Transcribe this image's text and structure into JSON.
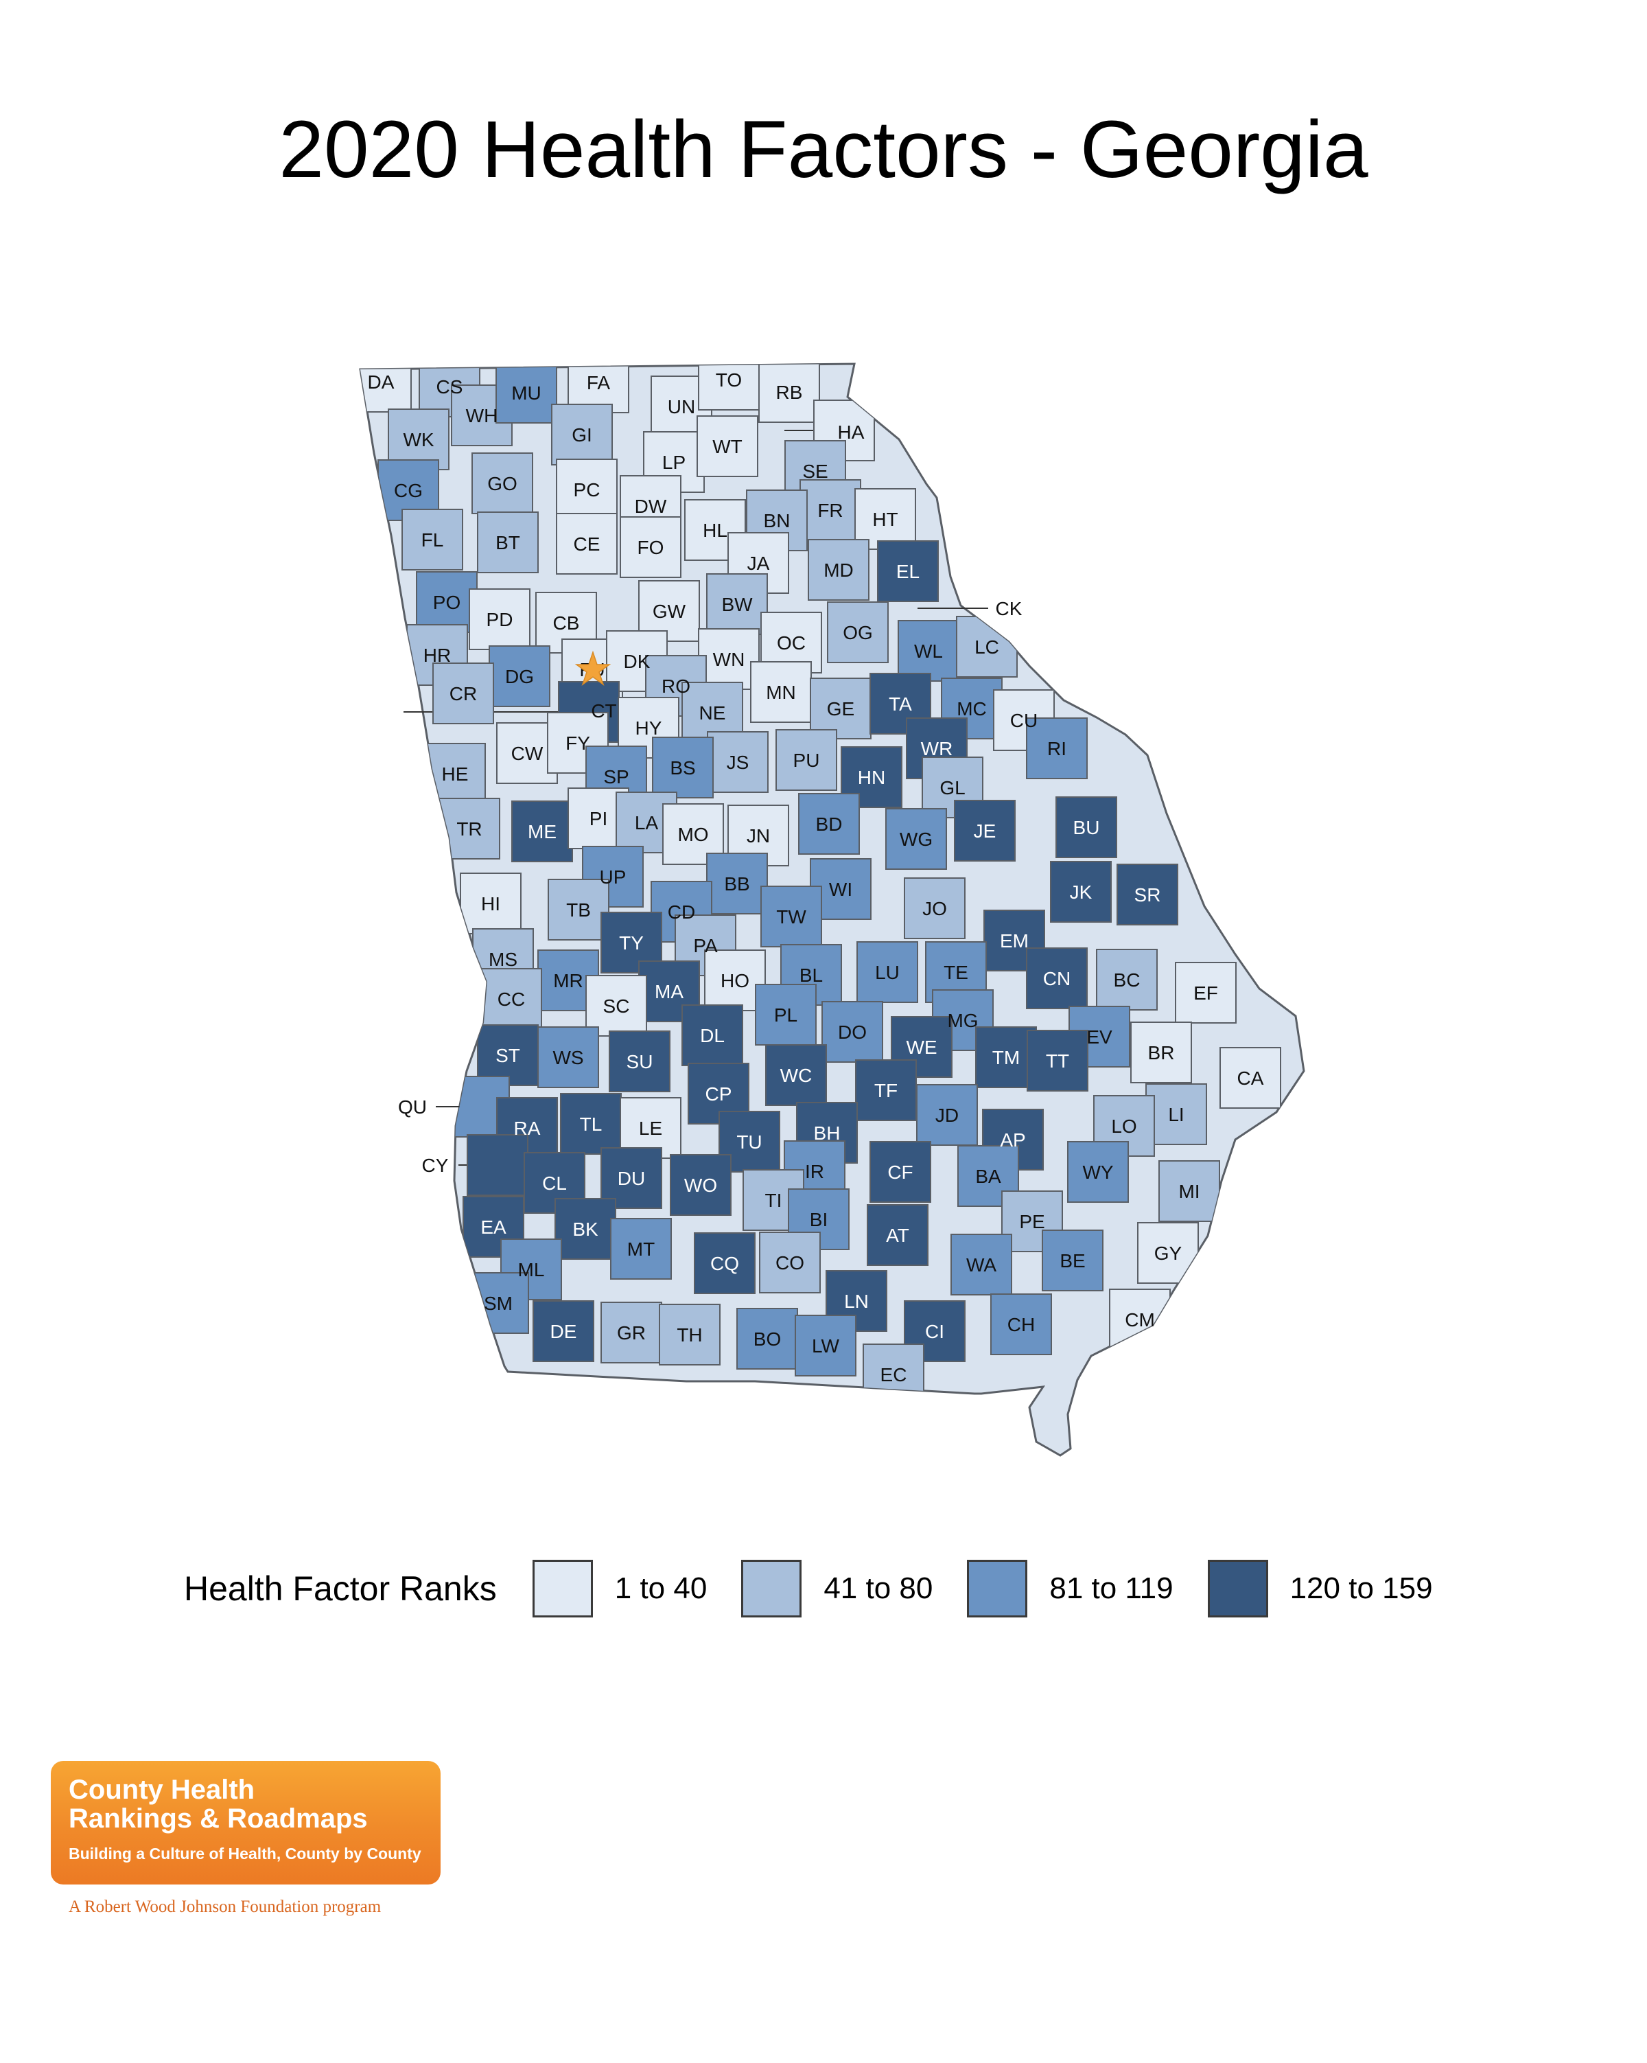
{
  "title": "2020 Health Factors - Georgia",
  "legend": {
    "title": "Health Factor Ranks",
    "bins": [
      {
        "label": "1 to 40",
        "color": "#e1eaf4"
      },
      {
        "label": "41 to 80",
        "color": "#a8bfdb"
      },
      {
        "label": "81 to 119",
        "color": "#6a93c3"
      },
      {
        "label": "120 to 159",
        "color": "#36577f"
      }
    ]
  },
  "counties": [
    {
      "abbr": "DA",
      "bin": 0
    },
    {
      "abbr": "CS",
      "bin": 1
    },
    {
      "abbr": "WH",
      "bin": 1
    },
    {
      "abbr": "MU",
      "bin": 2
    },
    {
      "abbr": "FA",
      "bin": 0
    },
    {
      "abbr": "UN",
      "bin": 0
    },
    {
      "abbr": "TO",
      "bin": 0
    },
    {
      "abbr": "RB",
      "bin": 0
    },
    {
      "abbr": "HA",
      "bin": 0
    },
    {
      "abbr": "WK",
      "bin": 1
    },
    {
      "abbr": "GI",
      "bin": 1
    },
    {
      "abbr": "LP",
      "bin": 0
    },
    {
      "abbr": "WT",
      "bin": 0
    },
    {
      "abbr": "CG",
      "bin": 2
    },
    {
      "abbr": "GO",
      "bin": 1
    },
    {
      "abbr": "PC",
      "bin": 0
    },
    {
      "abbr": "DW",
      "bin": 0
    },
    {
      "abbr": "SE",
      "bin": 1
    },
    {
      "abbr": "FR",
      "bin": 1
    },
    {
      "abbr": "BN",
      "bin": 1
    },
    {
      "abbr": "HT",
      "bin": 0
    },
    {
      "abbr": "FL",
      "bin": 1
    },
    {
      "abbr": "BT",
      "bin": 1
    },
    {
      "abbr": "CE",
      "bin": 0
    },
    {
      "abbr": "FO",
      "bin": 0
    },
    {
      "abbr": "HL",
      "bin": 0
    },
    {
      "abbr": "JA",
      "bin": 0
    },
    {
      "abbr": "MD",
      "bin": 1
    },
    {
      "abbr": "EL",
      "bin": 3
    },
    {
      "abbr": "CK",
      "bin": 0
    },
    {
      "abbr": "PO",
      "bin": 2
    },
    {
      "abbr": "PD",
      "bin": 0
    },
    {
      "abbr": "CB",
      "bin": 0
    },
    {
      "abbr": "GW",
      "bin": 0
    },
    {
      "abbr": "BW",
      "bin": 1
    },
    {
      "abbr": "OG",
      "bin": 1
    },
    {
      "abbr": "WL",
      "bin": 2
    },
    {
      "abbr": "LC",
      "bin": 1
    },
    {
      "abbr": "HR",
      "bin": 1
    },
    {
      "abbr": "DG",
      "bin": 2
    },
    {
      "abbr": "FU",
      "bin": 0
    },
    {
      "abbr": "DK",
      "bin": 0
    },
    {
      "abbr": "WN",
      "bin": 0
    },
    {
      "abbr": "OC",
      "bin": 0
    },
    {
      "abbr": "RO",
      "bin": 1
    },
    {
      "abbr": "MN",
      "bin": 0
    },
    {
      "abbr": "CR",
      "bin": 1
    },
    {
      "abbr": "CT",
      "bin": 3
    },
    {
      "abbr": "HY",
      "bin": 0
    },
    {
      "abbr": "NE",
      "bin": 1
    },
    {
      "abbr": "GE",
      "bin": 1
    },
    {
      "abbr": "TA",
      "bin": 3
    },
    {
      "abbr": "MC",
      "bin": 2
    },
    {
      "abbr": "CU",
      "bin": 0
    },
    {
      "abbr": "CW",
      "bin": 0
    },
    {
      "abbr": "FY",
      "bin": 0
    },
    {
      "abbr": "JS",
      "bin": 1
    },
    {
      "abbr": "PU",
      "bin": 1
    },
    {
      "abbr": "WR",
      "bin": 3
    },
    {
      "abbr": "RI",
      "bin": 2
    },
    {
      "abbr": "HE",
      "bin": 1
    },
    {
      "abbr": "SP",
      "bin": 2
    },
    {
      "abbr": "BS",
      "bin": 2
    },
    {
      "abbr": "HN",
      "bin": 3
    },
    {
      "abbr": "GL",
      "bin": 1
    },
    {
      "abbr": "TR",
      "bin": 1
    },
    {
      "abbr": "ME",
      "bin": 3
    },
    {
      "abbr": "PI",
      "bin": 0
    },
    {
      "abbr": "LA",
      "bin": 1
    },
    {
      "abbr": "MO",
      "bin": 0
    },
    {
      "abbr": "JN",
      "bin": 0
    },
    {
      "abbr": "BD",
      "bin": 2
    },
    {
      "abbr": "WG",
      "bin": 2
    },
    {
      "abbr": "JE",
      "bin": 3
    },
    {
      "abbr": "BU",
      "bin": 3
    },
    {
      "abbr": "UP",
      "bin": 2
    },
    {
      "abbr": "BB",
      "bin": 2
    },
    {
      "abbr": "WI",
      "bin": 2
    },
    {
      "abbr": "JK",
      "bin": 3
    },
    {
      "abbr": "SR",
      "bin": 3
    },
    {
      "abbr": "HI",
      "bin": 0
    },
    {
      "abbr": "TB",
      "bin": 1
    },
    {
      "abbr": "CD",
      "bin": 2
    },
    {
      "abbr": "TW",
      "bin": 2
    },
    {
      "abbr": "JO",
      "bin": 1
    },
    {
      "abbr": "TY",
      "bin": 3
    },
    {
      "abbr": "PA",
      "bin": 1
    },
    {
      "abbr": "EM",
      "bin": 3
    },
    {
      "abbr": "MS",
      "bin": 1
    },
    {
      "abbr": "LU",
      "bin": 2
    },
    {
      "abbr": "TE",
      "bin": 2
    },
    {
      "abbr": "CN",
      "bin": 3
    },
    {
      "abbr": "BC",
      "bin": 1
    },
    {
      "abbr": "EF",
      "bin": 0
    },
    {
      "abbr": "MR",
      "bin": 2
    },
    {
      "abbr": "MA",
      "bin": 3
    },
    {
      "abbr": "HO",
      "bin": 0
    },
    {
      "abbr": "BL",
      "bin": 2
    },
    {
      "abbr": "CC",
      "bin": 1
    },
    {
      "abbr": "SC",
      "bin": 0
    },
    {
      "abbr": "PL",
      "bin": 2
    },
    {
      "abbr": "DO",
      "bin": 2
    },
    {
      "abbr": "MG",
      "bin": 2
    },
    {
      "abbr": "DL",
      "bin": 3
    },
    {
      "abbr": "WE",
      "bin": 3
    },
    {
      "abbr": "EV",
      "bin": 2
    },
    {
      "abbr": "ST",
      "bin": 3
    },
    {
      "abbr": "WS",
      "bin": 2
    },
    {
      "abbr": "SU",
      "bin": 3
    },
    {
      "abbr": "WC",
      "bin": 3
    },
    {
      "abbr": "TM",
      "bin": 3
    },
    {
      "abbr": "TT",
      "bin": 3
    },
    {
      "abbr": "BR",
      "bin": 0
    },
    {
      "abbr": "CA",
      "bin": 0
    },
    {
      "abbr": "CP",
      "bin": 3
    },
    {
      "abbr": "TF",
      "bin": 3
    },
    {
      "abbr": "QU",
      "bin": 2
    },
    {
      "abbr": "JD",
      "bin": 2
    },
    {
      "abbr": "LI",
      "bin": 1
    },
    {
      "abbr": "RA",
      "bin": 3
    },
    {
      "abbr": "TL",
      "bin": 3
    },
    {
      "abbr": "LE",
      "bin": 0
    },
    {
      "abbr": "BH",
      "bin": 3
    },
    {
      "abbr": "LO",
      "bin": 1
    },
    {
      "abbr": "AP",
      "bin": 3
    },
    {
      "abbr": "TU",
      "bin": 3
    },
    {
      "abbr": "CY",
      "bin": 3
    },
    {
      "abbr": "CF",
      "bin": 3
    },
    {
      "abbr": "IR",
      "bin": 2
    },
    {
      "abbr": "BA",
      "bin": 2
    },
    {
      "abbr": "WY",
      "bin": 2
    },
    {
      "abbr": "CL",
      "bin": 3
    },
    {
      "abbr": "DU",
      "bin": 3
    },
    {
      "abbr": "WO",
      "bin": 3
    },
    {
      "abbr": "TI",
      "bin": 1
    },
    {
      "abbr": "MI",
      "bin": 1
    },
    {
      "abbr": "PE",
      "bin": 1
    },
    {
      "abbr": "EA",
      "bin": 3
    },
    {
      "abbr": "BK",
      "bin": 3
    },
    {
      "abbr": "BI",
      "bin": 2
    },
    {
      "abbr": "AT",
      "bin": 3
    },
    {
      "abbr": "GY",
      "bin": 0
    },
    {
      "abbr": "MT",
      "bin": 2
    },
    {
      "abbr": "ML",
      "bin": 2
    },
    {
      "abbr": "CQ",
      "bin": 3
    },
    {
      "abbr": "CO",
      "bin": 1
    },
    {
      "abbr": "WA",
      "bin": 2
    },
    {
      "abbr": "BE",
      "bin": 2
    },
    {
      "abbr": "SM",
      "bin": 2
    },
    {
      "abbr": "LN",
      "bin": 3
    },
    {
      "abbr": "CM",
      "bin": 0
    },
    {
      "abbr": "DE",
      "bin": 3
    },
    {
      "abbr": "GR",
      "bin": 1
    },
    {
      "abbr": "TH",
      "bin": 1
    },
    {
      "abbr": "BO",
      "bin": 2
    },
    {
      "abbr": "LW",
      "bin": 2
    },
    {
      "abbr": "CI",
      "bin": 3
    },
    {
      "abbr": "CH",
      "bin": 2
    },
    {
      "abbr": "EC",
      "bin": 1
    }
  ],
  "logo": {
    "line1": "County Health",
    "line2": "Rankings & Roadmaps",
    "tagline": "Building a Culture of Health, County by County"
  },
  "foundation_note": "A Robert Wood Johnson Foundation program"
}
